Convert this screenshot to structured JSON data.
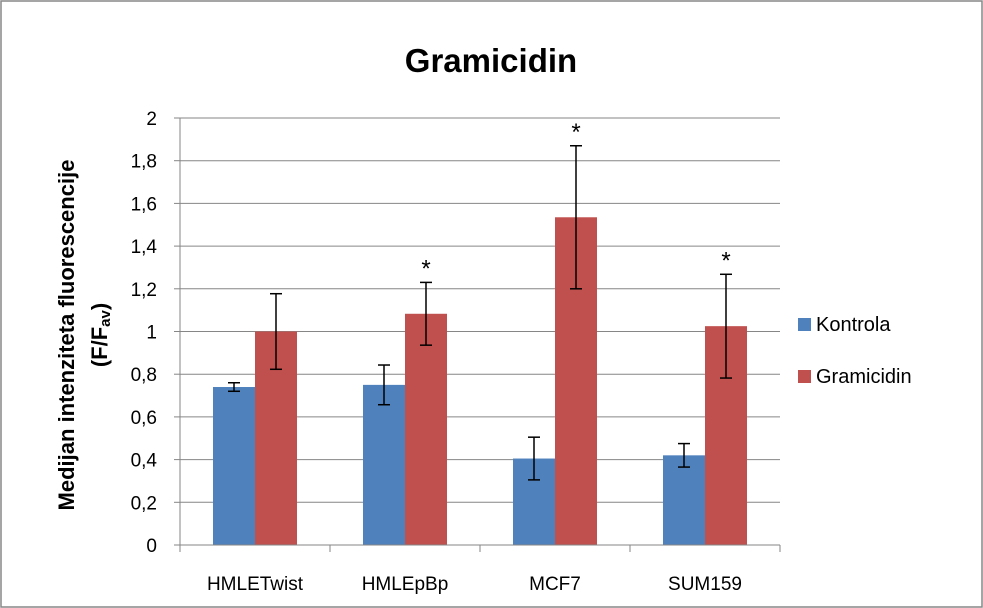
{
  "chart_data": {
    "type": "bar",
    "title": "Gramicidin",
    "ylabel_line1": "Medijan intenziteta fluorescencije",
    "ylabel_line2_main": "(F/F",
    "ylabel_line2_sub": "av",
    "ylabel_line2_end": ")",
    "xlabel": "",
    "categories": [
      "HMLETwist",
      "HMLEpBp",
      "MCF7",
      "SUM159"
    ],
    "ylim": [
      0,
      2
    ],
    "yticks": [
      0,
      0.2,
      0.4,
      0.6,
      0.8,
      1,
      1.2,
      1.4,
      1.6,
      1.8,
      2
    ],
    "ytick_labels": [
      "0",
      "0,2",
      "0,4",
      "0,6",
      "0,8",
      "1",
      "1,2",
      "1,4",
      "1,6",
      "1,8",
      "2"
    ],
    "grid": true,
    "legend_position": "right",
    "series": [
      {
        "name": "Kontrola",
        "color": "#4f81bd",
        "values": [
          0.74,
          0.75,
          0.405,
          0.42
        ],
        "errors": [
          0.02,
          0.093,
          0.1,
          0.055
        ]
      },
      {
        "name": "Gramicidin",
        "color": "#c0504d",
        "values": [
          1.0,
          1.083,
          1.535,
          1.025
        ],
        "errors": [
          0.177,
          0.147,
          0.335,
          0.243
        ]
      }
    ],
    "annotations": [
      {
        "category": "HMLEpBp",
        "series": "Gramicidin",
        "text": "*"
      },
      {
        "category": "MCF7",
        "series": "Gramicidin",
        "text": "*"
      },
      {
        "category": "SUM159",
        "series": "Gramicidin",
        "text": "*"
      }
    ]
  }
}
